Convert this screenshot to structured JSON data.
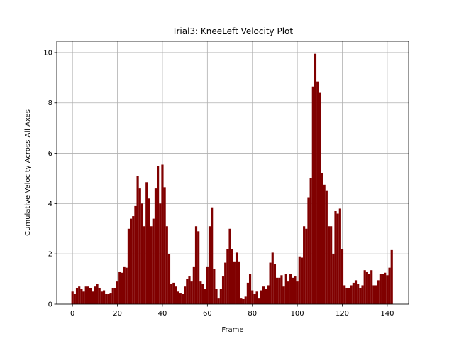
{
  "chart_data": {
    "type": "bar",
    "title": "Trial3: KneeLeft Velocity Plot",
    "x_label": "Frame",
    "y_label": "Cumulative Velocity Across All Axes",
    "color": "#800000",
    "grid": true,
    "x": [
      0,
      1,
      2,
      3,
      4,
      5,
      6,
      7,
      8,
      9,
      10,
      11,
      12,
      13,
      14,
      15,
      16,
      17,
      18,
      19,
      20,
      21,
      22,
      23,
      24,
      25,
      26,
      27,
      28,
      29,
      30,
      31,
      32,
      33,
      34,
      35,
      36,
      37,
      38,
      39,
      40,
      41,
      42,
      43,
      44,
      45,
      46,
      47,
      48,
      49,
      50,
      51,
      52,
      53,
      54,
      55,
      56,
      57,
      58,
      59,
      60,
      61,
      62,
      63,
      64,
      65,
      66,
      67,
      68,
      69,
      70,
      71,
      72,
      73,
      74,
      75,
      76,
      77,
      78,
      79,
      80,
      81,
      82,
      83,
      84,
      85,
      86,
      87,
      88,
      89,
      90,
      91,
      92,
      93,
      94,
      95,
      96,
      97,
      98,
      99,
      100,
      101,
      102,
      103,
      104,
      105,
      106,
      107,
      108,
      109,
      110,
      111,
      112,
      113,
      114,
      115,
      116,
      117,
      118,
      119,
      120,
      121,
      122,
      123,
      124,
      125,
      126,
      127,
      128,
      129,
      130,
      131,
      132,
      133,
      134,
      135,
      136,
      137,
      138,
      139,
      140,
      141,
      142
    ],
    "values": [
      0.5,
      0.4,
      0.65,
      0.7,
      0.6,
      0.5,
      0.7,
      0.7,
      0.65,
      0.5,
      0.7,
      0.8,
      0.65,
      0.5,
      0.55,
      0.4,
      0.4,
      0.45,
      0.65,
      0.65,
      0.9,
      1.3,
      1.25,
      1.5,
      1.45,
      3.0,
      3.4,
      3.5,
      3.9,
      5.1,
      4.6,
      4.0,
      3.1,
      4.85,
      4.2,
      3.1,
      3.4,
      4.6,
      5.5,
      4.0,
      5.55,
      4.65,
      3.1,
      2.0,
      0.8,
      0.85,
      0.7,
      0.5,
      0.45,
      0.4,
      0.7,
      1.0,
      1.1,
      0.9,
      1.5,
      3.1,
      2.9,
      0.9,
      0.8,
      0.6,
      1.5,
      3.1,
      3.85,
      1.4,
      0.6,
      0.25,
      0.6,
      1.1,
      1.65,
      2.2,
      3.0,
      2.2,
      1.7,
      2.05,
      1.7,
      0.25,
      0.2,
      0.3,
      0.85,
      1.2,
      0.55,
      0.4,
      0.5,
      0.25,
      0.55,
      0.7,
      0.6,
      0.75,
      1.65,
      2.05,
      1.6,
      1.05,
      1.05,
      1.15,
      0.7,
      1.2,
      0.9,
      1.2,
      1.05,
      1.1,
      0.9,
      1.9,
      1.85,
      3.1,
      3.0,
      4.25,
      5.0,
      8.65,
      9.95,
      8.85,
      8.4,
      5.2,
      4.75,
      4.5,
      3.1,
      3.1,
      2.0,
      3.7,
      3.6,
      3.8,
      2.2,
      0.75,
      0.65,
      0.65,
      0.75,
      0.85,
      0.95,
      0.8,
      0.65,
      0.75,
      1.35,
      1.3,
      1.2,
      1.35,
      0.75,
      0.75,
      0.95,
      1.2,
      1.2,
      1.25,
      1.15,
      1.45,
      2.15
    ],
    "xlim": [
      -7,
      149.5
    ],
    "ylim": [
      0,
      10.45
    ],
    "xticks": [
      0,
      20,
      40,
      60,
      80,
      100,
      120,
      140
    ],
    "yticks": [
      0,
      2,
      4,
      6,
      8,
      10
    ]
  }
}
